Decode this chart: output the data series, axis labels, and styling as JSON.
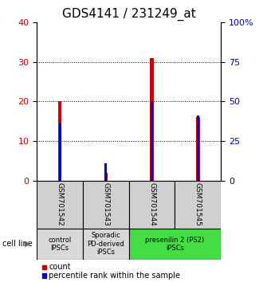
{
  "title": "GDS4141 / 231249_at",
  "samples": [
    "GSM701542",
    "GSM701543",
    "GSM701544",
    "GSM701545"
  ],
  "count_values": [
    20,
    2,
    31,
    16
  ],
  "percentile_values": [
    14.4,
    4.4,
    20.0,
    16.4
  ],
  "ylim_left": [
    0,
    40
  ],
  "ylim_right": [
    0,
    100
  ],
  "yticks_left": [
    0,
    10,
    20,
    30,
    40
  ],
  "yticks_right": [
    0,
    25,
    50,
    75,
    100
  ],
  "ytick_labels_right": [
    "0",
    "25",
    "50",
    "75",
    "100%"
  ],
  "count_color": "#cc0000",
  "percentile_color": "#0000cc",
  "sample_box_color": "#d0d0d0",
  "group1_color": "#d8d8d8",
  "group2_color": "#d8d8d8",
  "group3_color": "#44dd44",
  "group1_label": "control\nIPSCs",
  "group2_label": "Sporadic\nPD-derived\niPSCs",
  "group3_label": "presenilin 2 (PS2)\niPSCs",
  "cell_line_label": "cell line",
  "legend_count_label": "count",
  "legend_percentile_label": "percentile rank within the sample",
  "title_fontsize": 11,
  "tick_label_fontsize": 8,
  "sample_label_fontsize": 6.5,
  "group_label_fontsize": 6,
  "legend_fontsize": 7
}
